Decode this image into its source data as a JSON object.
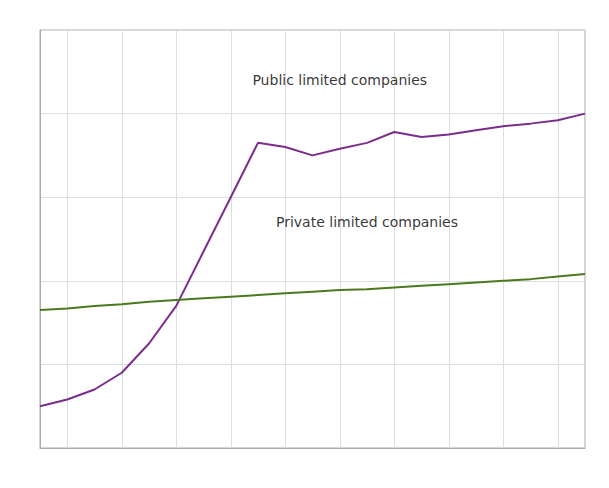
{
  "chart_data": {
    "type": "line",
    "x": [
      2003,
      2004,
      2005,
      2006,
      2007,
      2008,
      2009,
      2010,
      2011,
      2012,
      2013,
      2014,
      2015,
      2016,
      2017,
      2018,
      2019,
      2020,
      2021,
      2022,
      2023
    ],
    "series": [
      {
        "color": "#7B2D8B",
        "values": [
          5.0,
          5.8,
          7.0,
          9.0,
          12.5,
          17.0,
          23.5,
          30.0,
          36.5,
          36.0,
          35.0,
          35.8,
          36.5,
          37.8,
          37.2,
          37.5,
          38.0,
          38.5,
          38.8,
          39.2,
          40.0
        ]
      },
      {
        "color": "#4A7A1E",
        "values": [
          16.5,
          16.7,
          17.0,
          17.2,
          17.5,
          17.7,
          17.9,
          18.1,
          18.3,
          18.5,
          18.7,
          18.9,
          19.0,
          19.2,
          19.4,
          19.6,
          19.8,
          20.0,
          20.2,
          20.5,
          20.8
        ]
      }
    ],
    "annotations": [
      {
        "text": "Public limited companies",
        "x": 2014,
        "y": 44
      },
      {
        "text": "Private limited companies",
        "x": 2015,
        "y": 27
      }
    ],
    "xlim": [
      2003,
      2023
    ],
    "xticks": [
      2004,
      2006,
      2008,
      2010,
      2012,
      2014,
      2016,
      2018,
      2020,
      2022
    ],
    "ylim": [
      0,
      50
    ],
    "yticks": [
      0,
      10,
      20,
      30,
      40,
      50
    ],
    "grid": true,
    "tick_labels": false
  }
}
